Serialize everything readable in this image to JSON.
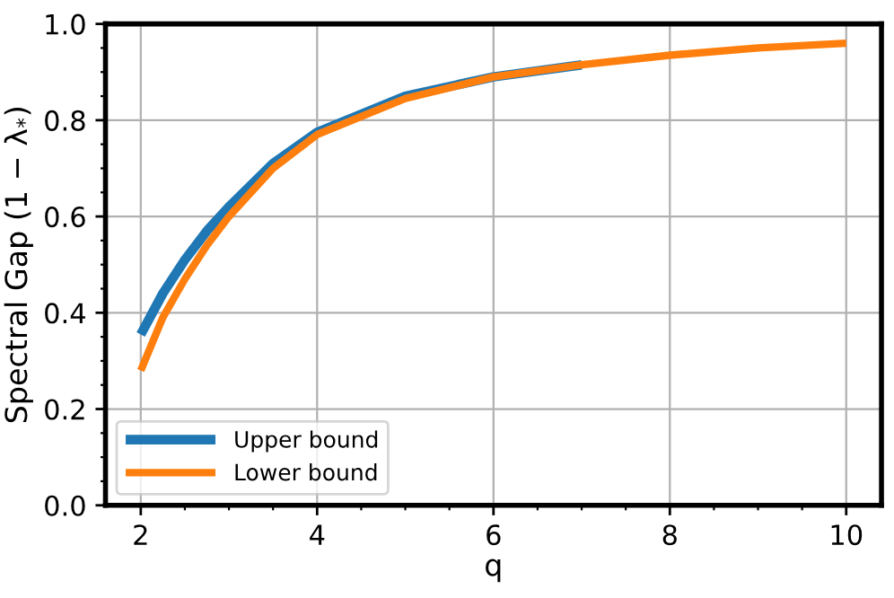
{
  "chart_data": {
    "type": "line",
    "xlabel": "q",
    "ylabel": "Spectral Gap (1 − λ$_{*}$)",
    "xlim": [
      1.6,
      10.4
    ],
    "xticks": [
      2,
      4,
      6,
      8,
      10
    ],
    "ylim": [
      0,
      1
    ],
    "yticks": [
      {
        "value": 0,
        "label": "0.0"
      },
      0.2,
      0.4,
      0.6,
      0.8,
      {
        "value": 1,
        "label": "1.0"
      }
    ],
    "grid": true,
    "legend": "bottom left",
    "line_style": "solid",
    "series": [
      {
        "name": "Upper bound",
        "color": "#1f77b4",
        "x": [
          2,
          2.25,
          2.5,
          2.75,
          3,
          3.5,
          4,
          5,
          6,
          7
        ],
        "values": [
          0.355,
          0.44,
          0.51,
          0.57,
          0.62,
          0.71,
          0.775,
          0.85,
          0.89,
          0.915
        ]
      },
      {
        "name": "Lower bound",
        "color": "#ff7f0e",
        "x": [
          2,
          2.25,
          2.5,
          2.75,
          3,
          3.5,
          4,
          5,
          6,
          7,
          8,
          9,
          10
        ],
        "values": [
          0.28,
          0.39,
          0.47,
          0.54,
          0.6,
          0.7,
          0.77,
          0.845,
          0.89,
          0.915,
          0.935,
          0.95,
          0.96
        ]
      }
    ]
  }
}
